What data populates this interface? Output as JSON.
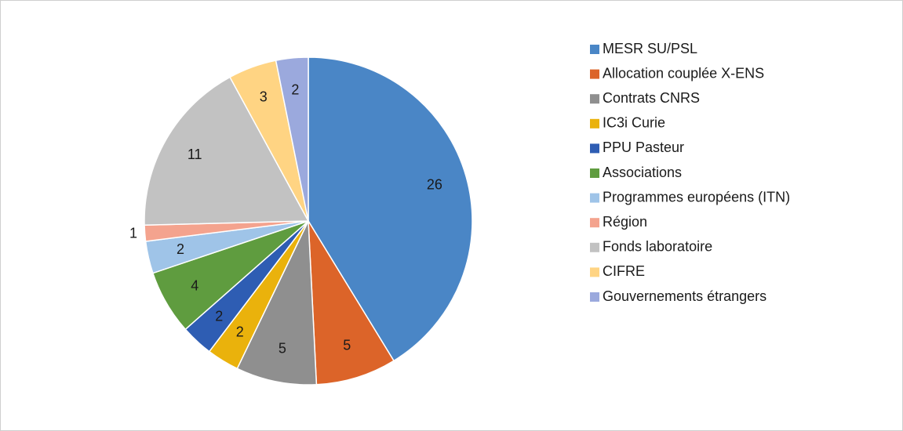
{
  "chart_data": {
    "type": "pie",
    "categories": [
      "MESR SU/PSL",
      "Allocation couplée X-ENS",
      "Contrats CNRS",
      "IC3i Curie",
      "PPU Pasteur",
      "Associations",
      "Programmes européens (ITN)",
      "Région",
      "Fonds laboratoire",
      "CIFRE",
      "Gouvernements étrangers"
    ],
    "values": [
      26,
      5,
      5,
      2,
      2,
      4,
      2,
      1,
      11,
      3,
      2
    ],
    "colors": [
      "#4a86c6",
      "#dc6429",
      "#8f8f8f",
      "#eab20c",
      "#2e5db3",
      "#5f9c3f",
      "#9fc4e8",
      "#f4a38e",
      "#c2c2c2",
      "#ffd483",
      "#9ba9dd"
    ],
    "legend": "right"
  }
}
